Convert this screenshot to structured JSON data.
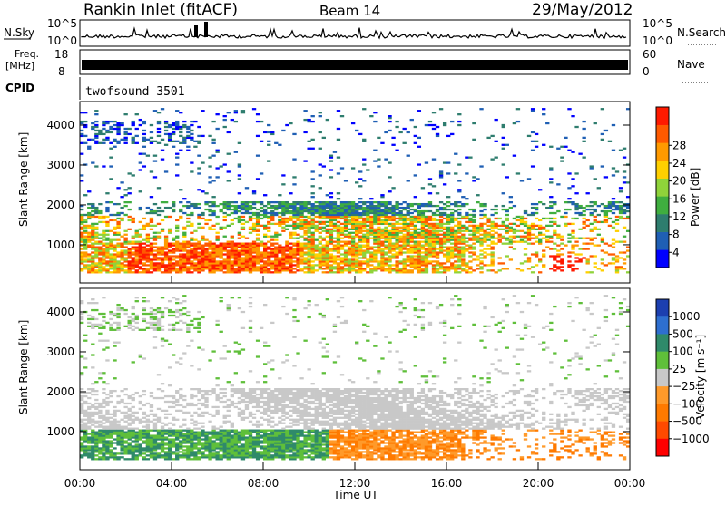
{
  "header": {
    "station": "Rankin Inlet (fitACF)",
    "beam": "Beam 14",
    "date": "29/May/2012"
  },
  "noise_panel": {
    "left_label": "N.Sky",
    "right_label": "N.Search",
    "left_ticks": [
      "10^5",
      "10^0"
    ],
    "right_ticks": [
      "10^5",
      "10^0"
    ]
  },
  "freq_panel": {
    "left_label_line1": "Freq.",
    "left_label_line2": "[MHz]",
    "right_label": "Nave",
    "left_ticks": [
      "18",
      "8"
    ],
    "right_ticks": [
      "60",
      "0"
    ]
  },
  "cpid": {
    "label": "CPID",
    "value": "twofsound 3501"
  },
  "chart_data": [
    {
      "type": "heatmap",
      "title": "Power",
      "ylabel": "Slant Range [km]",
      "xlabel": "Time UT",
      "x_ticks": [
        "00:00",
        "04:00",
        "08:00",
        "12:00",
        "16:00",
        "20:00",
        "00:00"
      ],
      "y_ticks": [
        1000,
        2000,
        3000,
        4000
      ],
      "ylim": [
        180,
        4500
      ],
      "colorbar": {
        "label": "Power [dB]",
        "ticks": [
          "4",
          "8",
          "12",
          "16",
          "20",
          "24",
          "28"
        ],
        "colors": [
          "#0000ff",
          "#1f5fb4",
          "#2e7d6e",
          "#3fae3f",
          "#8fd33a",
          "#ffd000",
          "#ff9a00",
          "#ff5a00",
          "#ff1a00"
        ]
      }
    },
    {
      "type": "heatmap",
      "title": "Velocity",
      "ylabel": "Slant Range [km]",
      "xlabel": "Time UT",
      "x_ticks": [
        "00:00",
        "04:00",
        "08:00",
        "12:00",
        "16:00",
        "20:00",
        "00:00"
      ],
      "y_ticks": [
        1000,
        2000,
        3000,
        4000
      ],
      "ylim": [
        180,
        4500
      ],
      "colorbar": {
        "label": "Velocity [m s⁻¹]",
        "ticks": [
          "1000",
          "500",
          "100",
          "25",
          "−25",
          "−100",
          "−500",
          "−1000"
        ],
        "colors": [
          "#1c3fb0",
          "#2e6fd0",
          "#2f8a6a",
          "#5fbf3a",
          "#c8c8c8",
          "#ff9a2a",
          "#ff7a00",
          "#ff4a00",
          "#ff0000"
        ]
      }
    }
  ],
  "axis": {
    "xlabel": "Time UT"
  }
}
